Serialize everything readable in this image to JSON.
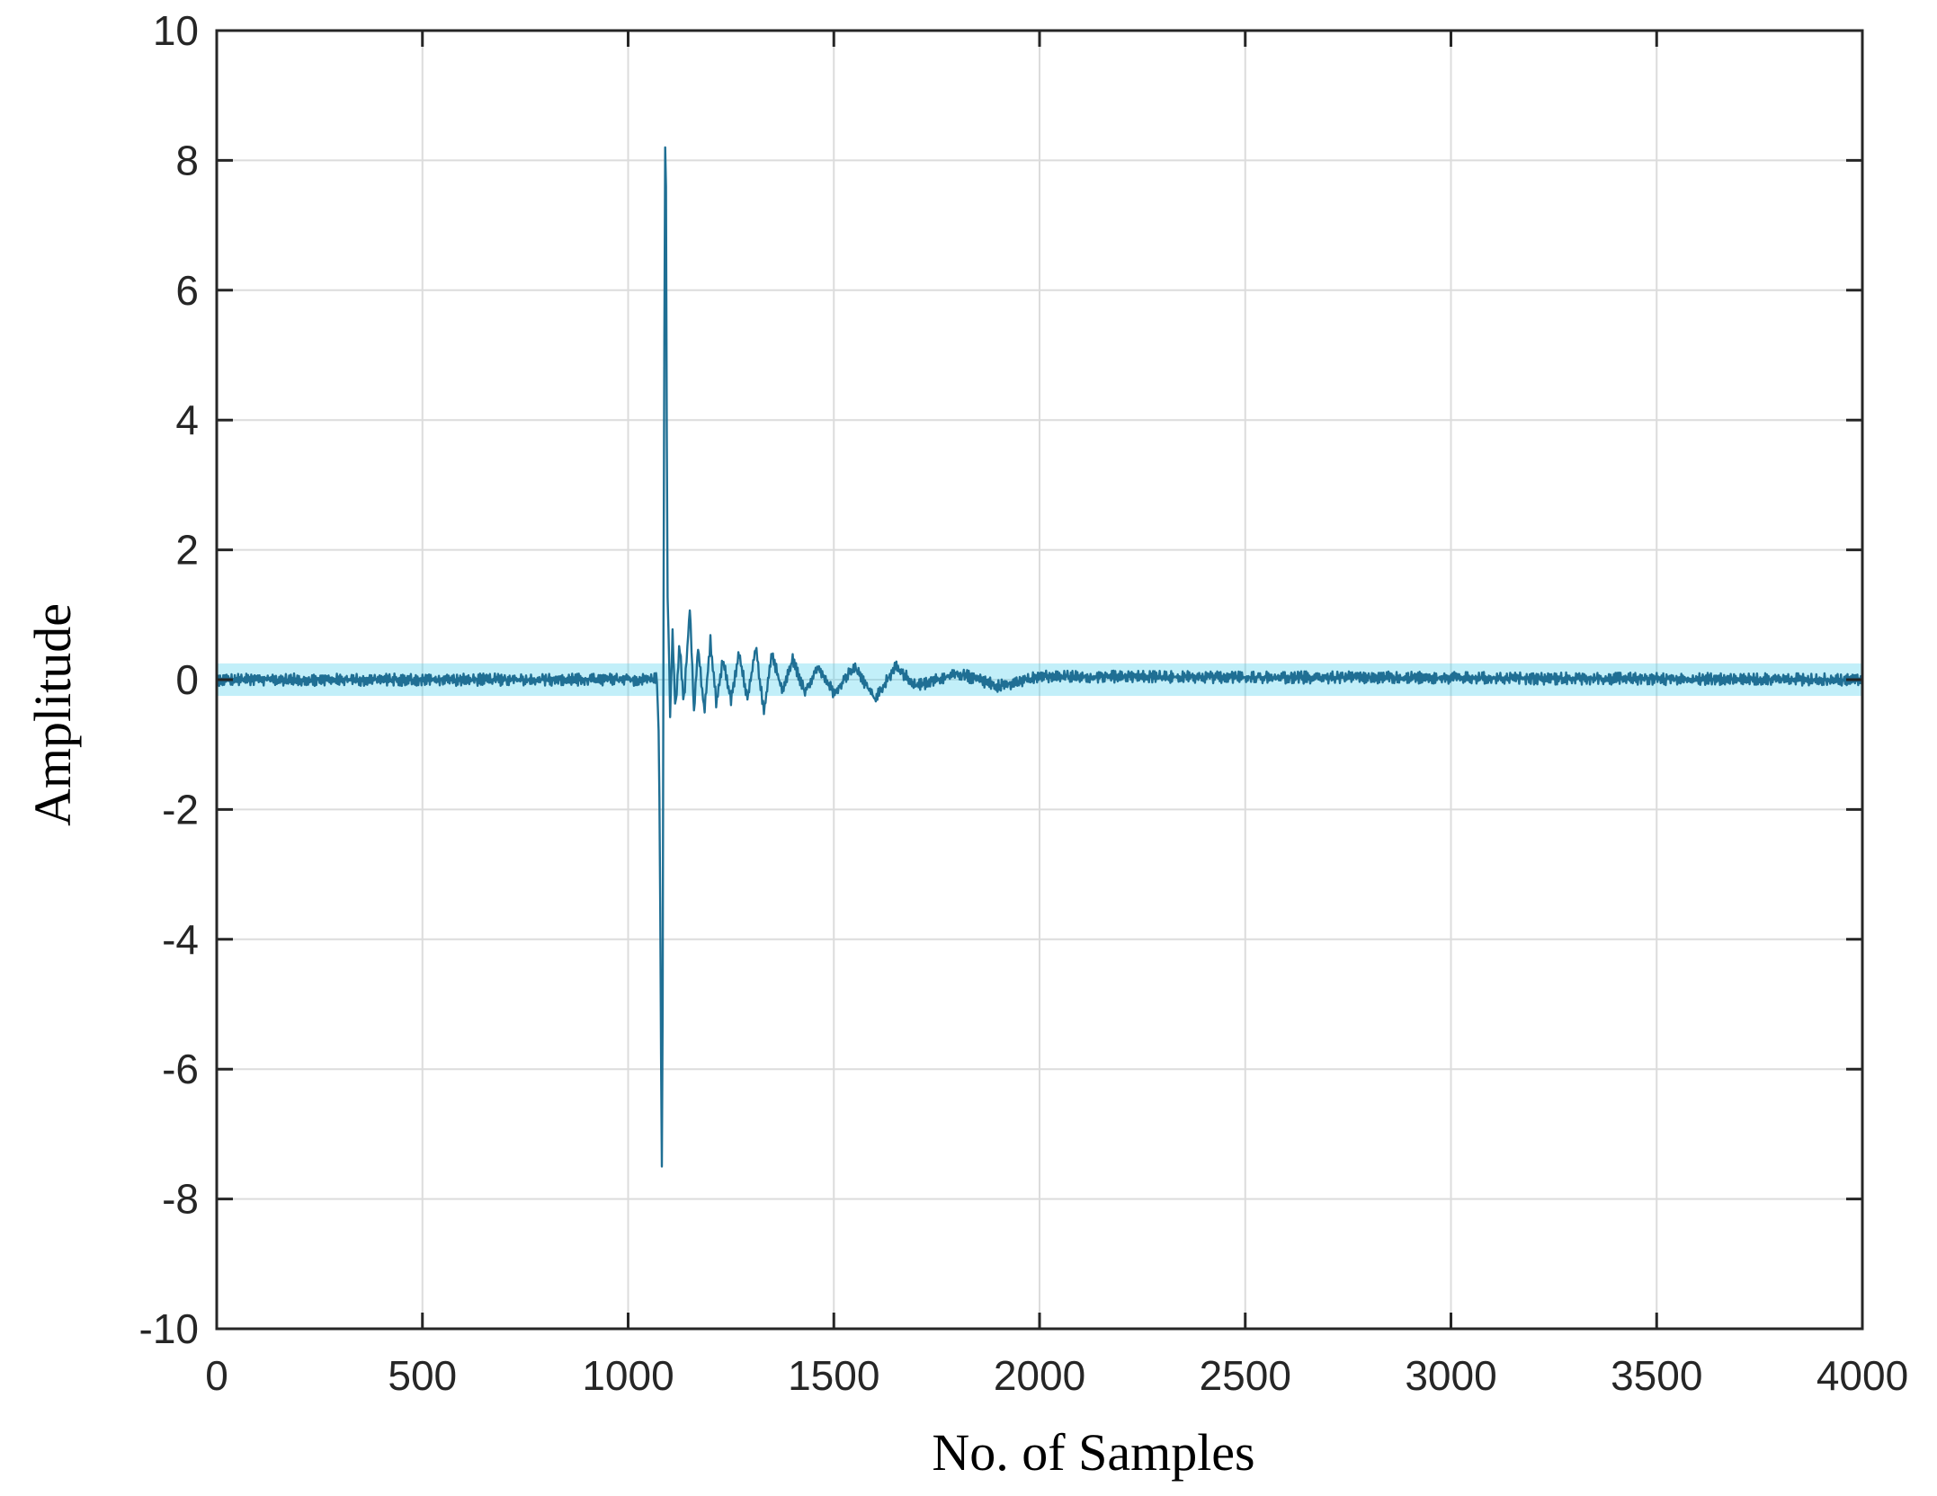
{
  "chart_data": {
    "type": "line",
    "title": "",
    "xlabel": "No. of Samples",
    "ylabel": "Amplitude",
    "xlim": [
      0,
      4000
    ],
    "ylim": [
      -10,
      10
    ],
    "x_ticks": [
      0,
      500,
      1000,
      1500,
      2000,
      2500,
      3000,
      3500,
      4000
    ],
    "y_ticks": [
      -10,
      -8,
      -6,
      -4,
      -2,
      0,
      2,
      4,
      6,
      8,
      10
    ],
    "x_tick_labels": [
      "0",
      "500",
      "1000",
      "1500",
      "2000",
      "2500",
      "3000",
      "3500",
      "4000"
    ],
    "y_tick_labels": [
      "-10",
      "-8",
      "-6",
      "-4",
      "-2",
      "0",
      "2",
      "4",
      "6",
      "8",
      "10"
    ],
    "grid": true,
    "series": [
      {
        "color": "#1f6f94",
        "band_color": "#4fd2ee",
        "x": [
          0,
          1060,
          1070,
          1075,
          1078,
          1081,
          1083,
          1085,
          1087,
          1089,
          1091,
          1093,
          1095,
          1098,
          1102,
          1108,
          1115,
          1125,
          1135,
          1150,
          1160,
          1170,
          1185,
          1200,
          1215,
          1230,
          1250,
          1270,
          1290,
          1310,
          1330,
          1350,
          1375,
          1400,
          1430,
          1460,
          1500,
          1550,
          1600,
          1650,
          1700,
          1800,
          1900,
          2000,
          4000
        ],
        "y": [
          0.0,
          0.0,
          0.05,
          -1.0,
          -3.5,
          -6.9,
          -8.1,
          -2.0,
          3.5,
          7.2,
          9.2,
          6.0,
          1.5,
          0.8,
          -0.5,
          0.7,
          -0.5,
          0.6,
          -0.4,
          1.1,
          -0.5,
          0.5,
          -0.5,
          0.6,
          -0.4,
          0.3,
          -0.3,
          0.4,
          -0.3,
          0.5,
          -0.5,
          0.4,
          -0.2,
          0.3,
          -0.2,
          0.2,
          -0.2,
          0.2,
          -0.3,
          0.2,
          -0.1,
          0.1,
          -0.1,
          0.05,
          0.0
        ],
        "noise_amplitude": 0.08
      }
    ]
  }
}
